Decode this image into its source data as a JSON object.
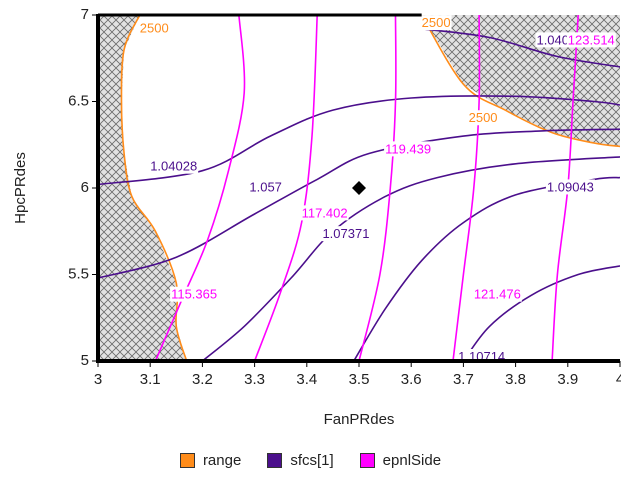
{
  "chart_data": {
    "type": "contour",
    "xlabel": "FanPRdes",
    "ylabel": "HpcPRdes",
    "xlim": [
      3,
      4
    ],
    "ylim": [
      5,
      7
    ],
    "x_ticks": [
      "3",
      "3.1",
      "3.2",
      "3.3",
      "3.4",
      "3.5",
      "3.6",
      "3.7",
      "3.8",
      "3.9",
      "4"
    ],
    "y_ticks": [
      "5",
      "5.5",
      "6",
      "6.5",
      "7"
    ],
    "design_point": {
      "x": 3.5,
      "y": 6.0
    },
    "series": [
      {
        "name": "range",
        "color": "#ff8c1a",
        "contours": [
          {
            "label": "2500",
            "label_at": {
              "x": 3.08,
              "y": 6.92
            },
            "points": [
              [
                3.08,
                7.0
              ],
              [
                3.05,
                6.8
              ],
              [
                3.045,
                6.5
              ],
              [
                3.05,
                6.2
              ],
              [
                3.065,
                5.95
              ],
              [
                3.11,
                5.75
              ],
              [
                3.15,
                5.45
              ],
              [
                3.15,
                5.2
              ],
              [
                3.17,
                5.0
              ]
            ]
          },
          {
            "label": "2500",
            "label_at": {
              "x": 3.62,
              "y": 6.95
            },
            "points": [
              [
                3.62,
                7.0
              ],
              [
                3.7,
                6.6
              ],
              [
                3.78,
                6.45
              ],
              [
                3.87,
                6.32
              ],
              [
                3.95,
                6.26
              ],
              [
                4.0,
                6.24
              ]
            ]
          },
          {
            "label": "2500",
            "label_at": {
              "x": 3.71,
              "y": 6.4
            },
            "points": []
          }
        ]
      },
      {
        "name": "sfcs[1]",
        "color": "#4b0f8c",
        "contours": [
          {
            "label": "1.04028",
            "label_at": {
              "x": 3.1,
              "y": 6.12
            },
            "points": [
              [
                3.0,
                6.02
              ],
              [
                3.2,
                6.1
              ],
              [
                3.33,
                6.3
              ],
              [
                3.45,
                6.45
              ],
              [
                3.6,
                6.52
              ],
              [
                3.8,
                6.53
              ],
              [
                3.95,
                6.5
              ],
              [
                4.0,
                6.48
              ]
            ]
          },
          {
            "label": "1.04028",
            "label_at": {
              "x": 3.84,
              "y": 6.85
            },
            "points": [
              [
                3.62,
                6.92
              ],
              [
                3.75,
                6.87
              ],
              [
                3.88,
                6.76
              ],
              [
                4.0,
                6.7
              ]
            ]
          },
          {
            "label": "1.057",
            "label_at": {
              "x": 3.29,
              "y": 6.0
            },
            "points": [
              [
                3.0,
                5.48
              ],
              [
                3.15,
                5.6
              ],
              [
                3.3,
                5.85
              ],
              [
                3.42,
                6.05
              ],
              [
                3.52,
                6.2
              ],
              [
                3.7,
                6.3
              ],
              [
                3.85,
                6.33
              ],
              [
                4.0,
                6.34
              ]
            ]
          },
          {
            "label": "1.07371",
            "label_at": {
              "x": 3.43,
              "y": 5.73
            },
            "points": [
              [
                3.2,
                5.0
              ],
              [
                3.28,
                5.2
              ],
              [
                3.37,
                5.48
              ],
              [
                3.45,
                5.75
              ],
              [
                3.55,
                5.95
              ],
              [
                3.65,
                6.06
              ],
              [
                3.8,
                6.14
              ],
              [
                4.0,
                6.18
              ]
            ]
          },
          {
            "label": "1.09043",
            "label_at": {
              "x": 3.86,
              "y": 6.0
            },
            "points": [
              [
                3.49,
                5.0
              ],
              [
                3.55,
                5.3
              ],
              [
                3.62,
                5.58
              ],
              [
                3.7,
                5.8
              ],
              [
                3.8,
                5.96
              ],
              [
                3.95,
                6.05
              ],
              [
                4.0,
                6.06
              ]
            ]
          },
          {
            "label": "1.10714",
            "label_at": {
              "x": 3.69,
              "y": 5.02
            },
            "points": [
              [
                3.7,
                5.0
              ],
              [
                3.75,
                5.2
              ],
              [
                3.83,
                5.38
              ],
              [
                3.92,
                5.5
              ],
              [
                4.0,
                5.55
              ]
            ]
          }
        ]
      },
      {
        "name": "epnlSide",
        "color": "#ff00ff",
        "contours": [
          {
            "label": "115.365",
            "label_at": {
              "x": 3.14,
              "y": 5.38
            },
            "points": [
              [
                3.11,
                5.0
              ],
              [
                3.16,
                5.35
              ],
              [
                3.21,
                5.7
              ],
              [
                3.25,
                6.1
              ],
              [
                3.28,
                6.55
              ],
              [
                3.27,
                7.0
              ]
            ]
          },
          {
            "label": "117.402",
            "label_at": {
              "x": 3.39,
              "y": 5.85
            },
            "points": [
              [
                3.3,
                5.0
              ],
              [
                3.35,
                5.4
              ],
              [
                3.39,
                5.8
              ],
              [
                3.41,
                6.3
              ],
              [
                3.42,
                7.0
              ]
            ]
          },
          {
            "label": "119.439",
            "label_at": {
              "x": 3.55,
              "y": 6.22
            },
            "points": [
              [
                3.5,
                5.0
              ],
              [
                3.54,
                5.5
              ],
              [
                3.56,
                6.0
              ],
              [
                3.57,
                6.5
              ],
              [
                3.57,
                7.0
              ]
            ]
          },
          {
            "label": "121.476",
            "label_at": {
              "x": 3.72,
              "y": 5.38
            },
            "points": [
              [
                3.68,
                5.0
              ],
              [
                3.7,
                5.5
              ],
              [
                3.72,
                6.0
              ],
              [
                3.73,
                6.5
              ],
              [
                3.73,
                7.0
              ]
            ]
          },
          {
            "label": "123.514",
            "label_at": {
              "x": 3.9,
              "y": 6.85
            },
            "points": [
              [
                3.87,
                5.0
              ],
              [
                3.88,
                5.5
              ],
              [
                3.9,
                6.0
              ],
              [
                3.91,
                6.5
              ],
              [
                3.92,
                7.0
              ]
            ]
          }
        ]
      }
    ],
    "infeasible_regions": [
      {
        "points": [
          [
            3.0,
            7.0
          ],
          [
            3.08,
            7.0
          ],
          [
            3.05,
            6.8
          ],
          [
            3.045,
            6.5
          ],
          [
            3.05,
            6.2
          ],
          [
            3.065,
            5.95
          ],
          [
            3.11,
            5.75
          ],
          [
            3.15,
            5.45
          ],
          [
            3.15,
            5.2
          ],
          [
            3.17,
            5.0
          ],
          [
            3.0,
            5.0
          ]
        ]
      },
      {
        "points": [
          [
            3.62,
            7.0
          ],
          [
            3.7,
            6.6
          ],
          [
            3.78,
            6.45
          ],
          [
            3.87,
            6.32
          ],
          [
            3.95,
            6.26
          ],
          [
            4.0,
            6.24
          ],
          [
            4.0,
            7.0
          ]
        ]
      }
    ],
    "legend": {
      "placement": "bottom",
      "items": [
        "range",
        "sfcs[1]",
        "epnlSide"
      ]
    }
  }
}
